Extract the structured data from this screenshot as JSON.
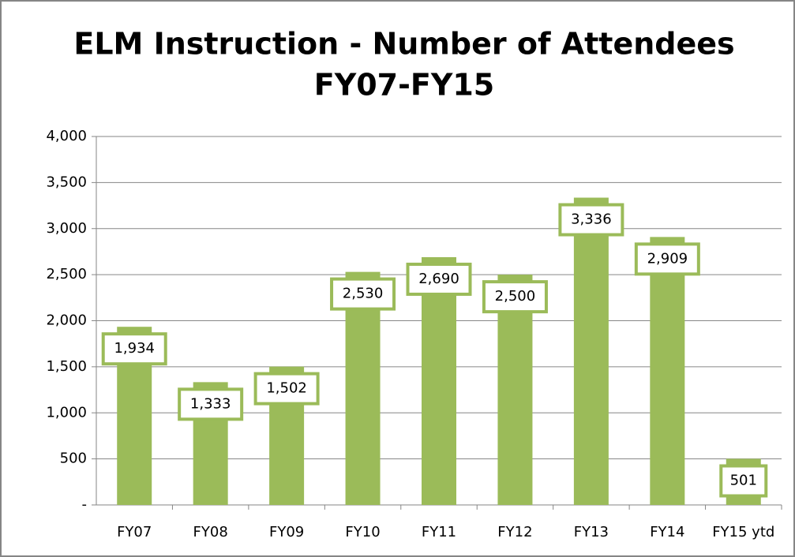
{
  "chart_data": {
    "type": "bar",
    "title": [
      "ELM Instruction - Number of Attendees",
      "FY07-FY15"
    ],
    "categories": [
      "FY07",
      "FY08",
      "FY09",
      "FY10",
      "FY11",
      "FY12",
      "FY13",
      "FY14",
      "FY15 ytd"
    ],
    "values": [
      1934,
      1333,
      1502,
      2530,
      2690,
      2500,
      3336,
      2909,
      501
    ],
    "value_labels": [
      "1,934",
      "1,333",
      "1,502",
      "2,530",
      "2,690",
      "2,500",
      "3,336",
      "2,909",
      "501"
    ],
    "color": "#9bbb59",
    "ylim": [
      0,
      4000
    ],
    "yticks": [
      {
        "value": 0,
        "label": "-"
      },
      500,
      {
        "value": 1000,
        "label": "1,000"
      },
      {
        "value": 1500,
        "label": "1,500"
      },
      {
        "value": 2000,
        "label": "2,000"
      },
      {
        "value": 2500,
        "label": "2,500"
      },
      {
        "value": 3000,
        "label": "3,000"
      },
      {
        "value": 3500,
        "label": "3,500"
      },
      {
        "value": 4000,
        "label": "4,000"
      }
    ],
    "grid": true
  }
}
